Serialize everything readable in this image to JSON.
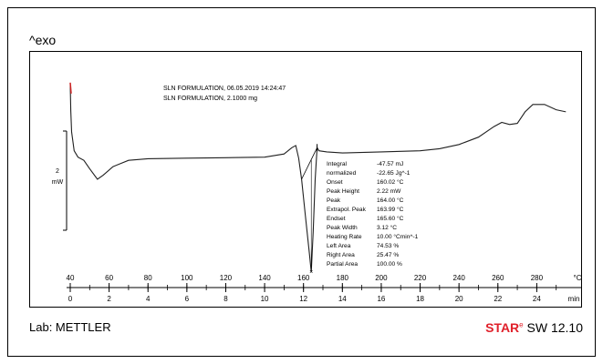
{
  "header": {
    "exo_label": "^exo"
  },
  "footer": {
    "lab_label": "Lab: METTLER",
    "software_brand": "STAR",
    "software_reg": "e",
    "software_version": "SW 12.10"
  },
  "chart_data": {
    "type": "line",
    "title_lines": [
      "SLN FORMULATION, 06.05.2019 14:24:47",
      "SLN FORMULATION, 2.1000 mg"
    ],
    "scale_bar": {
      "value": "2",
      "unit": "mW"
    },
    "x_temperature": {
      "ticks": [
        40,
        60,
        80,
        100,
        120,
        140,
        160,
        180,
        200,
        220,
        240,
        260,
        280
      ],
      "unit": "°C",
      "range": [
        40,
        300
      ]
    },
    "x_time": {
      "ticks": [
        0,
        2,
        4,
        6,
        8,
        10,
        12,
        14,
        16,
        18,
        20,
        22,
        24
      ],
      "unit": "min",
      "range": [
        0,
        26
      ]
    },
    "y_range": [
      -12.5,
      6.5
    ],
    "series": [
      {
        "points": [
          [
            40.0,
            6.0
          ],
          [
            40.3,
            3.5
          ],
          [
            40.7,
            1.5
          ],
          [
            42,
            -0.3
          ],
          [
            44,
            -0.9
          ],
          [
            47,
            -1.2
          ],
          [
            50,
            -2.0
          ],
          [
            54,
            -3.0
          ],
          [
            57,
            -2.6
          ],
          [
            62,
            -1.8
          ],
          [
            70,
            -1.2
          ],
          [
            80,
            -1.05
          ],
          [
            100,
            -1.0
          ],
          [
            120,
            -0.95
          ],
          [
            140,
            -0.9
          ],
          [
            150,
            -0.6
          ],
          [
            154,
            0.0
          ],
          [
            156,
            0.2
          ],
          [
            157.5,
            -1.0
          ],
          [
            159,
            -3.0
          ],
          [
            161,
            -6.5
          ],
          [
            163,
            -10.0
          ],
          [
            164,
            -11.8
          ],
          [
            165,
            -8.0
          ],
          [
            166,
            -3.0
          ],
          [
            167,
            0.0
          ],
          [
            168,
            -0.3
          ],
          [
            172,
            -0.4
          ],
          [
            180,
            -0.5
          ],
          [
            200,
            -0.4
          ],
          [
            220,
            -0.3
          ],
          [
            230,
            -0.1
          ],
          [
            240,
            0.3
          ],
          [
            250,
            1.0
          ],
          [
            258,
            2.0
          ],
          [
            262,
            2.4
          ],
          [
            266,
            2.2
          ],
          [
            270,
            2.3
          ],
          [
            274,
            3.4
          ],
          [
            278,
            4.1
          ],
          [
            284,
            4.1
          ],
          [
            290,
            3.6
          ],
          [
            295,
            3.4
          ]
        ]
      }
    ],
    "annotations": {
      "rows": [
        {
          "label": "Integral",
          "value": "-47.57 mJ"
        },
        {
          "label": "  normalized",
          "value": "-22.65 Jg^-1"
        },
        {
          "label": "Onset",
          "value": "160.02 °C"
        },
        {
          "label": "Peak Height",
          "value": "2.22 mW"
        },
        {
          "label": "Peak",
          "value": "164.00 °C"
        },
        {
          "label": "Extrapol. Peak",
          "value": "163.99 °C"
        },
        {
          "label": "Endset",
          "value": "165.60 °C"
        },
        {
          "label": "Peak Width",
          "value": "3.12 °C"
        },
        {
          "label": "Heating Rate",
          "value": "10.00 °Cmin^-1"
        },
        {
          "label": "Left Area",
          "value": "74.53 %"
        },
        {
          "label": "Right Area",
          "value": "25.47 %"
        },
        {
          "label": "Partial Area",
          "value": "100.00 %"
        }
      ],
      "baseline_start_temp": 159,
      "baseline_end_temp": 167,
      "peak_temp": 164
    },
    "colors": {
      "curve": "#202020",
      "start_marker": "#cc2222"
    }
  }
}
